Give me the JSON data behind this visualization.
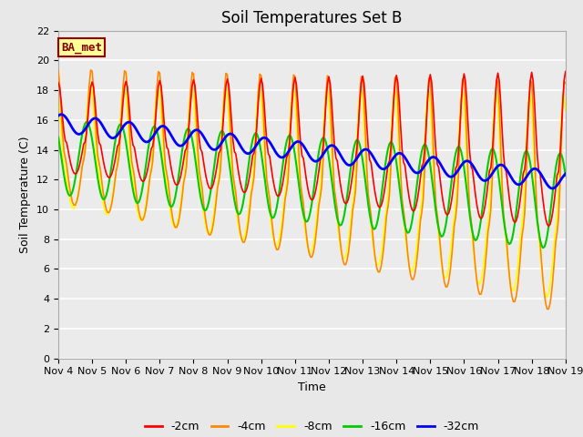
{
  "title": "Soil Temperatures Set B",
  "xlabel": "Time",
  "ylabel": "Soil Temperature (C)",
  "ylim": [
    0,
    22
  ],
  "yticks": [
    0,
    2,
    4,
    6,
    8,
    10,
    12,
    14,
    16,
    18,
    20,
    22
  ],
  "xtick_labels": [
    "Nov 4",
    "Nov 5",
    "Nov 6",
    "Nov 7",
    "Nov 8",
    "Nov 9",
    "Nov 10",
    "Nov 11",
    "Nov 12",
    "Nov 13",
    "Nov 14",
    "Nov 15",
    "Nov 16",
    "Nov 17",
    "Nov 18",
    "Nov 19"
  ],
  "legend_labels": [
    "-2cm",
    "-4cm",
    "-8cm",
    "-16cm",
    "-32cm"
  ],
  "line_colors": [
    "#ff0000",
    "#ff8800",
    "#ffff00",
    "#00cc00",
    "#0000ff"
  ],
  "line_widths": [
    1.2,
    1.2,
    1.2,
    1.5,
    2.0
  ],
  "annotation_text": "BA_met",
  "annotation_bg": "#ffff99",
  "annotation_border": "#990000",
  "fig_bg": "#e8e8e8",
  "plot_bg": "#ebebeb",
  "grid_color": "#ffffff",
  "title_fontsize": 12,
  "axis_label_fontsize": 9,
  "tick_fontsize": 8,
  "legend_fontsize": 9
}
